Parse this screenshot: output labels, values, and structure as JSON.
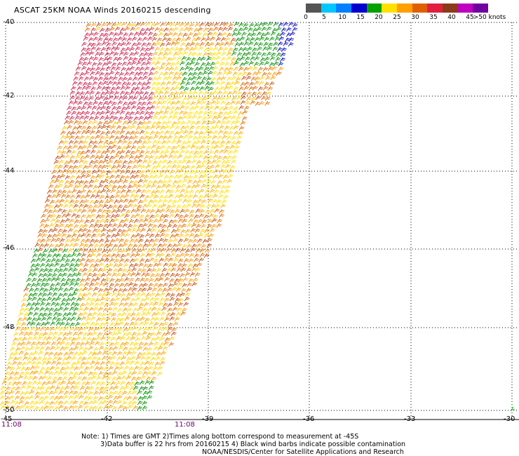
{
  "title": "ASCAT 25KM NOAA Winds 20160215 descending",
  "legend": {
    "unit_label": ">50 knots",
    "ticks": [
      "0",
      "5",
      "10",
      "15",
      "20",
      "25",
      "30",
      "35",
      "40",
      "45"
    ],
    "colors": [
      "#555555",
      "#00c8ff",
      "#0080ff",
      "#0000d0",
      "#00a000",
      "#ffe000",
      "#ffa000",
      "#e06000",
      "#e02040",
      "#8b3a1a",
      "#c000c0",
      "#7000a0"
    ]
  },
  "latitudes": [
    "-40",
    "-42",
    "-44",
    "-46",
    "-48",
    "-50"
  ],
  "longitudes": [
    "-45",
    "-42",
    "-39",
    "-36",
    "-33",
    "-30"
  ],
  "times": [
    "11:08",
    "11:08"
  ],
  "notes": [
    "Note: 1) Times are GMT 2)Times along bottom correspond to measurement at -45S",
    "3)Data buffer is 22 hrs from 20160215 4) Black wind barbs indicate possible contamination",
    "NOAA/NESDIS/Center for Satellite Applications and Research"
  ]
}
